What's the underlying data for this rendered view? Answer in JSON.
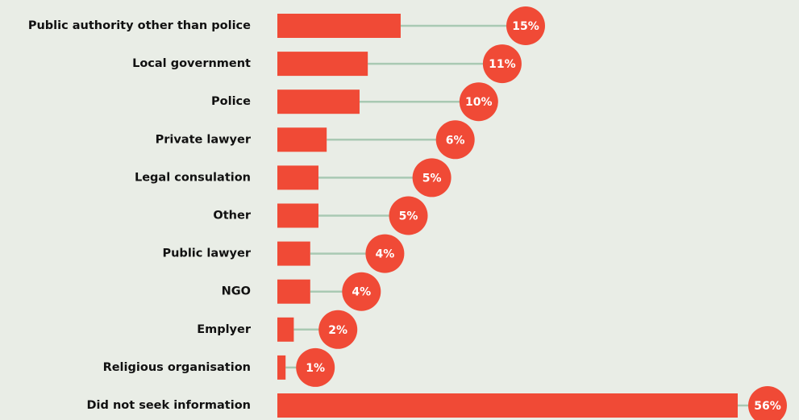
{
  "chart_data": {
    "type": "bar",
    "orientation": "horizontal",
    "categories": [
      "Public authority other than police",
      "Local government",
      "Police",
      "Private lawyer",
      "Legal consulation",
      "Other",
      "Public lawyer",
      "NGO",
      "Emplyer",
      "Religious organisation",
      "Did not seek information"
    ],
    "values": [
      15,
      11,
      10,
      6,
      5,
      5,
      4,
      4,
      2,
      1,
      56
    ],
    "value_labels": [
      "15%",
      "11%",
      "10%",
      "6%",
      "5%",
      "5%",
      "4%",
      "4%",
      "2%",
      "1%",
      "56%"
    ],
    "color": "#f04a36"
  }
}
